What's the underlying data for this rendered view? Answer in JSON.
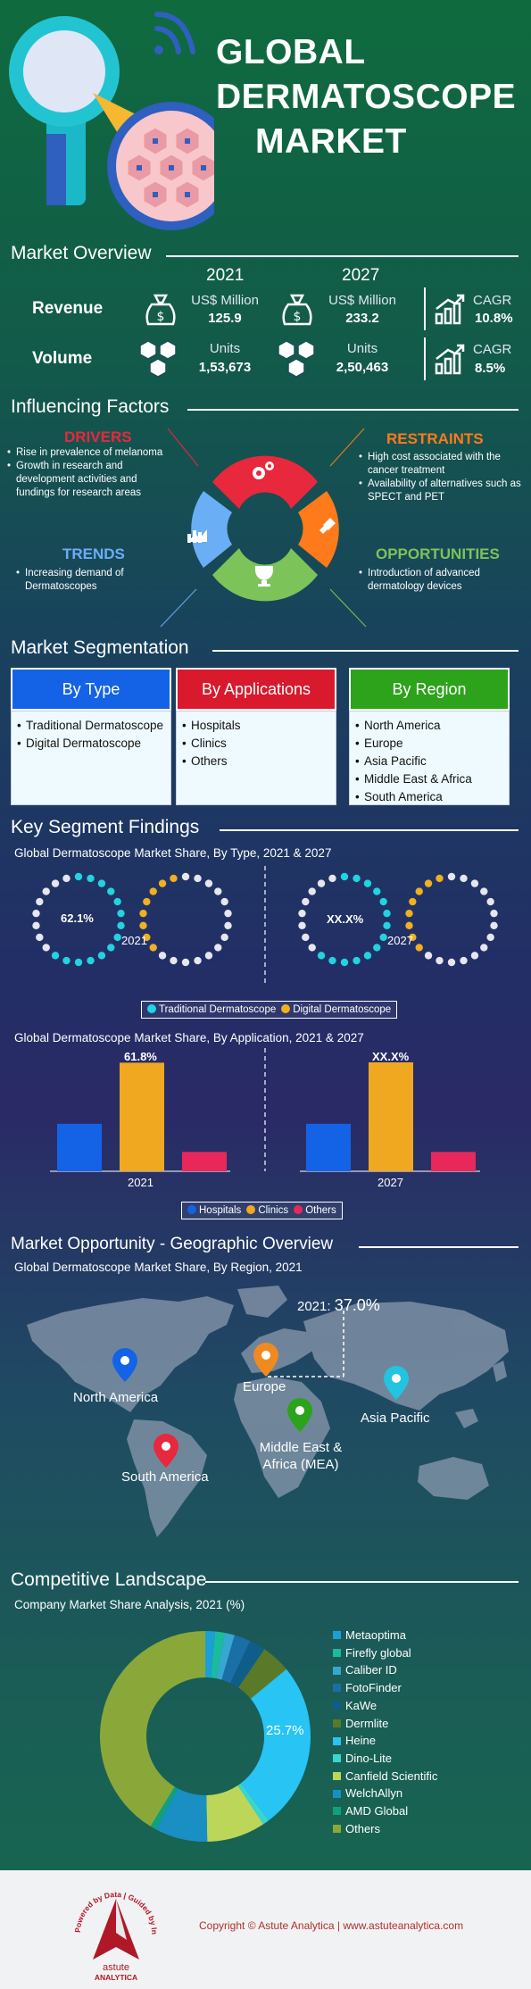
{
  "header": {
    "title_line1": "GLOBAL",
    "title_line2": "DERMATOSCOPE",
    "title_line3": "MARKET"
  },
  "overview": {
    "title": "Market Overview",
    "years": [
      "2021",
      "2027"
    ],
    "revenue": {
      "label": "Revenue",
      "unit_2021": "US$ Million",
      "value_2021": "125.9",
      "unit_2027": "US$ Million",
      "value_2027": "233.2",
      "cagr_label": "CAGR",
      "cagr_value": "10.8%"
    },
    "volume": {
      "label": "Volume",
      "unit_2021": "Units",
      "value_2021": "1,53,673",
      "unit_2027": "Units",
      "value_2027": "2,50,463",
      "cagr_label": "CAGR",
      "cagr_value": "8.5%"
    }
  },
  "factors": {
    "title": "Influencing Factors",
    "drivers": {
      "label": "DRIVERS",
      "items": [
        "Rise in prevalence of melanoma",
        "Growth in research and development activities and fundings for research areas"
      ]
    },
    "restraints": {
      "label": "RESTRAINTS",
      "items": [
        "High cost associated with the cancer treatment",
        "Availability of alternatives such as SPECT and PET"
      ]
    },
    "trends": {
      "label": "TRENDS",
      "items": [
        "Increasing demand of Dermatoscopes"
      ]
    },
    "opportunities": {
      "label": "OPPORTUNITIES",
      "items": [
        "Introduction of advanced dermatology devices"
      ]
    },
    "colors": {
      "drivers": "#e8283c",
      "restraints": "#ff7a1a",
      "trends": "#6aaef5",
      "opportunities": "#7cc35a"
    }
  },
  "segmentation": {
    "title": "Market Segmentation",
    "columns": [
      {
        "label": "By Type",
        "color": "#1463e6",
        "items": [
          "Traditional Dermatoscope",
          "Digital Dermatoscope"
        ]
      },
      {
        "label": "By Applications",
        "color": "#d9192c",
        "items": [
          "Hospitals",
          "Clinics",
          "Others"
        ]
      },
      {
        "label": "By Region",
        "color": "#2ca31a",
        "items": [
          "North America",
          "Europe",
          "Asia Pacific",
          "Middle East & Africa",
          "South America"
        ]
      }
    ]
  },
  "findings": {
    "title": "Key Segment Findings",
    "type_subtitle": "Global Dermatoscope Market Share, By Type, 2021 & 2027",
    "type_2021_label": "62.1%",
    "type_2027_label": "XX.X%",
    "year_2021": "2021",
    "year_2027": "2027",
    "type_legend": [
      "Traditional Dermatoscope",
      "Digital Dermatoscope"
    ],
    "app_subtitle": "Global Dermatoscope Market Share, By Application, 2021 & 2027",
    "app_2021_label": "61.8%",
    "app_2027_label": "XX.X%",
    "app_legend": [
      "Hospitals",
      "Clinics",
      "Others"
    ]
  },
  "chart_data": [
    {
      "type": "pie",
      "title": "Global Dermatoscope Market Share, By Type, 2021 & 2027",
      "series": [
        {
          "name": "2021",
          "categories": [
            "Traditional Dermatoscope",
            "Digital Dermatoscope"
          ],
          "values": [
            62.1,
            37.9
          ]
        },
        {
          "name": "2027",
          "categories": [
            "Traditional Dermatoscope",
            "Digital Dermatoscope"
          ],
          "values": [
            62,
            38
          ]
        }
      ],
      "colors": [
        "#22d3e0",
        "#f0b020"
      ]
    },
    {
      "type": "bar",
      "title": "Global Dermatoscope Market Share, By Application, 2021 & 2027",
      "categories": [
        "Hospitals",
        "Clinics",
        "Others"
      ],
      "series": [
        {
          "name": "2021",
          "values": [
            27,
            61.8,
            11
          ]
        },
        {
          "name": "2027",
          "values": [
            27,
            62,
            11
          ]
        }
      ],
      "colors": [
        "#1463e6",
        "#f0a820",
        "#e8285a"
      ]
    },
    {
      "type": "pie",
      "title": "Company Market Share Analysis, 2021 (%)",
      "categories": [
        "Metaoptima",
        "Firefly global",
        "Caliber ID",
        "FotoFinder",
        "KaWe",
        "Dermlite",
        "Heine",
        "Dino-Lite",
        "Canfield Scientific",
        "WelchAllyn",
        "AMD Global",
        "Others"
      ],
      "values": [
        1.5,
        1.5,
        1.5,
        2.5,
        2.5,
        4.5,
        25.7,
        1.0,
        9.0,
        8.0,
        1.0,
        41.3
      ],
      "highlight_label": "25.7%",
      "colors": [
        "#1aa0d6",
        "#1abc9c",
        "#36a8d0",
        "#1a6fa6",
        "#0f5e8a",
        "#5a7a2a",
        "#27c4f4",
        "#38d6d0",
        "#bcd65a",
        "#1a8fc4",
        "#0fa080",
        "#8aa83a"
      ]
    }
  ],
  "geo": {
    "title": "Market Opportunity - Geographic Overview",
    "subtitle": "Global Dermatoscope Market Share, By Region, 2021",
    "callout_year": "2021:",
    "callout_value": "37.0%",
    "regions": [
      "North America",
      "Europe",
      "Asia Pacific",
      "Middle East & Africa (MEA)",
      "South America"
    ],
    "pin_colors": {
      "na": "#1463e6",
      "eu": "#f08a20",
      "ap": "#22c4e0",
      "mea": "#2ca31a",
      "sa": "#e8283c"
    }
  },
  "competitive": {
    "title": "Competitive Landscape",
    "subtitle": "Company Market Share Analysis, 2021 (%)"
  },
  "footer": {
    "text": "Copyright © Astute Analytica | www.astuteanalytica.com",
    "logo_ring_text": "Powered by Data | Guided by Intelligence",
    "logo_name1": "astute",
    "logo_name2": "ANALYTICA"
  }
}
